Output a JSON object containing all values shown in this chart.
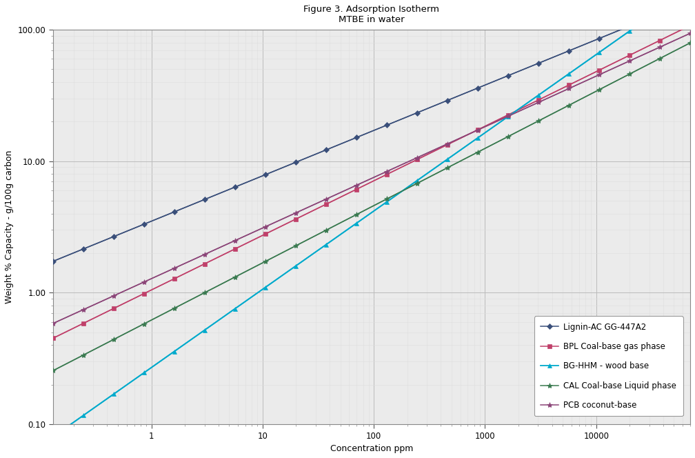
{
  "title_line1": "Figure 3. Adsorption Isotherm",
  "title_line2": "MTBE in water",
  "xlabel": "Concentration ppm",
  "ylabel": "Weight % Capacity - g/100g carbon",
  "xlim": [
    0.13,
    70000
  ],
  "ylim": [
    0.1,
    100.0
  ],
  "series": [
    {
      "label": "Lignin-AC GG-447A2",
      "color": "#3A4F7A",
      "marker": "D",
      "markersize": 4,
      "linewidth": 1.1,
      "K": 3.5,
      "n": 0.345
    },
    {
      "label": "BPL Coal-base gas phase",
      "color": "#C0406A",
      "marker": "s",
      "markersize": 4,
      "linewidth": 1.1,
      "K": 1.05,
      "n": 0.415
    },
    {
      "label": "BG-HHM - wood base",
      "color": "#00AACC",
      "marker": "^",
      "markersize": 5,
      "linewidth": 1.3,
      "K": 0.27,
      "n": 0.595
    },
    {
      "label": "CAL Coal-base Liquid phase",
      "color": "#3A7A50",
      "marker": "*",
      "markersize": 6,
      "linewidth": 1.1,
      "K": 0.62,
      "n": 0.435
    },
    {
      "label": "PCB coconut-base",
      "color": "#8B4578",
      "marker": "*",
      "markersize": 6,
      "linewidth": 1.1,
      "K": 1.28,
      "n": 0.385
    }
  ],
  "grid_major_color": "#BBBBBB",
  "grid_minor_color": "#DDDDDD",
  "bg_color": "#EBEBEB",
  "title_fontsize": 9.5,
  "label_fontsize": 9,
  "tick_fontsize": 8.5,
  "legend_fontsize": 8.5,
  "legend_labelspacing": 1.3
}
